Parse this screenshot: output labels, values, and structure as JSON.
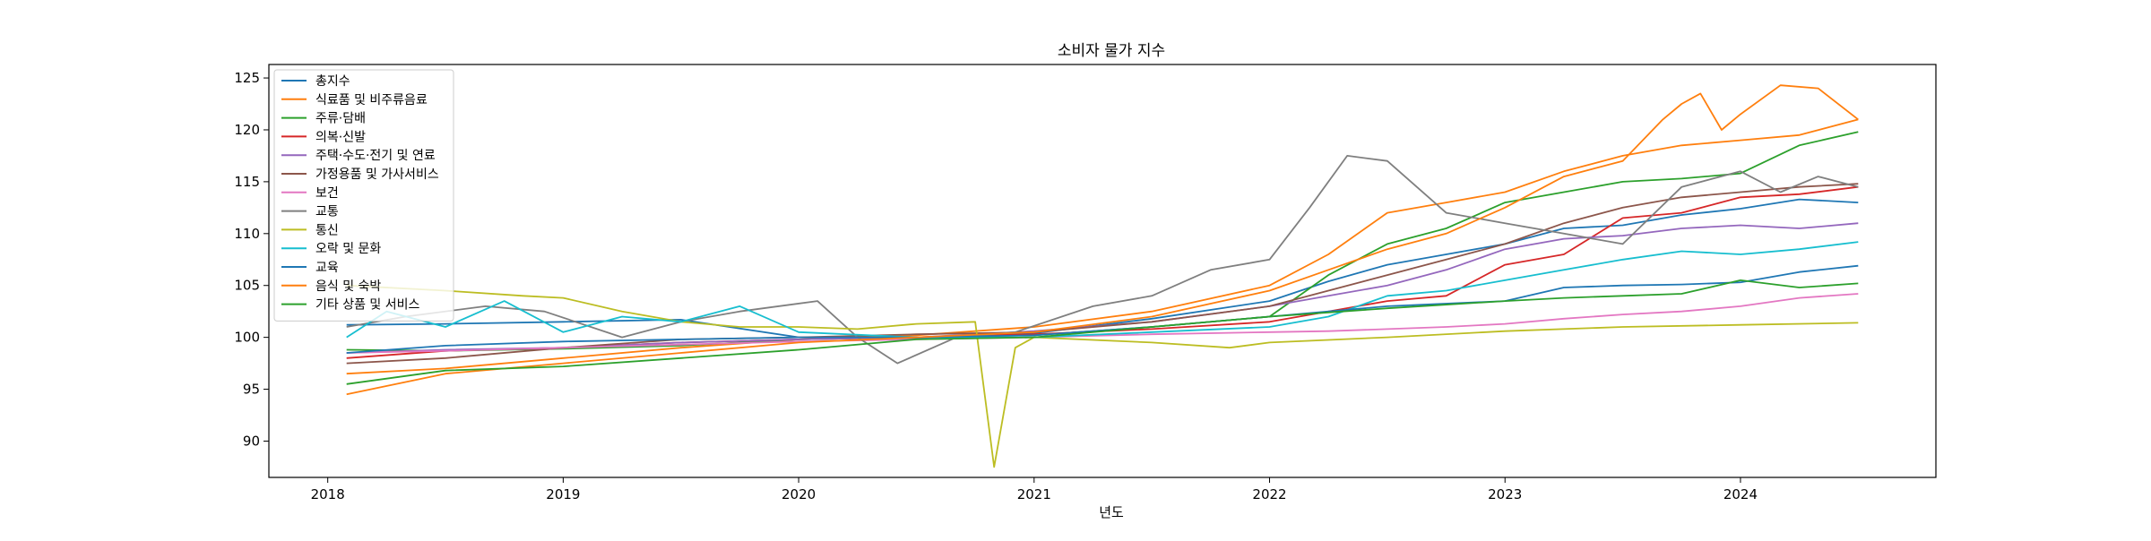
{
  "chart_data": {
    "type": "line",
    "title": "소비자 물가 지수",
    "xlabel": "년도",
    "ylabel": "",
    "xlim": [
      2017.75,
      2024.83
    ],
    "ylim": [
      86.5,
      126.3
    ],
    "xticks": [
      2018,
      2019,
      2020,
      2021,
      2022,
      2023,
      2024
    ],
    "yticks": [
      90,
      95,
      100,
      105,
      110,
      115,
      120,
      125
    ],
    "grid": false,
    "legend_position": "top-left",
    "series": [
      {
        "name": "총지수",
        "color": "#1f77b4",
        "x": [
          2018.08,
          2018.5,
          2019.0,
          2019.5,
          2020.0,
          2020.5,
          2021.0,
          2021.5,
          2022.0,
          2022.25,
          2022.5,
          2022.75,
          2023.0,
          2023.25,
          2023.5,
          2023.75,
          2024.0,
          2024.25,
          2024.5
        ],
        "y": [
          101.2,
          101.3,
          101.5,
          101.7,
          100.0,
          99.9,
          100.4,
          101.8,
          103.5,
          105.4,
          107.0,
          108.0,
          109.0,
          110.5,
          110.8,
          111.8,
          112.4,
          113.3,
          113.0
        ]
      },
      {
        "name": "식료품 및 비주류음료",
        "color": "#ff7f0e",
        "x": [
          2018.08,
          2018.5,
          2019.0,
          2019.5,
          2020.0,
          2020.5,
          2021.0,
          2021.5,
          2022.0,
          2022.25,
          2022.5,
          2022.75,
          2023.0,
          2023.25,
          2023.5,
          2023.75,
          2024.0,
          2024.25,
          2024.5
        ],
        "y": [
          96.5,
          97.0,
          98.0,
          99.0,
          99.8,
          100.2,
          101.0,
          102.5,
          105.0,
          108.0,
          112.0,
          113.0,
          114.0,
          116.0,
          117.5,
          118.5,
          119.0,
          119.5,
          121.0
        ]
      },
      {
        "name": "주류·담배",
        "color": "#2ca02c",
        "x": [
          2018.08,
          2018.5,
          2019.0,
          2019.5,
          2020.0,
          2020.5,
          2021.0,
          2021.5,
          2022.0,
          2022.25,
          2022.5,
          2022.75,
          2023.0,
          2023.25,
          2023.5,
          2023.75,
          2024.0,
          2024.25,
          2024.5
        ],
        "y": [
          98.8,
          98.7,
          98.9,
          99.2,
          99.8,
          100.0,
          100.2,
          101.0,
          102.0,
          106.0,
          109.0,
          110.5,
          113.0,
          114.0,
          115.0,
          115.3,
          115.8,
          118.5,
          119.8
        ]
      },
      {
        "name": "의복·신발",
        "color": "#d62728",
        "x": [
          2018.08,
          2018.5,
          2019.0,
          2019.5,
          2020.0,
          2020.5,
          2021.0,
          2021.5,
          2022.0,
          2022.25,
          2022.5,
          2022.75,
          2023.0,
          2023.25,
          2023.5,
          2023.75,
          2024.0,
          2024.25,
          2024.5
        ],
        "y": [
          98.0,
          98.7,
          99.0,
          99.5,
          99.8,
          100.0,
          100.3,
          100.8,
          101.5,
          102.5,
          103.5,
          104.0,
          107.0,
          108.0,
          111.5,
          112.0,
          113.5,
          113.8,
          114.5
        ]
      },
      {
        "name": "주택·수도·전기 및 연료",
        "color": "#9467bd",
        "x": [
          2018.08,
          2018.5,
          2019.0,
          2019.5,
          2020.0,
          2020.5,
          2021.0,
          2021.5,
          2022.0,
          2022.25,
          2022.5,
          2022.75,
          2023.0,
          2023.25,
          2023.5,
          2023.75,
          2024.0,
          2024.25,
          2024.5
        ],
        "y": [
          98.5,
          98.8,
          99.0,
          99.5,
          99.8,
          100.0,
          100.6,
          101.5,
          103.0,
          104.0,
          105.0,
          106.5,
          108.5,
          109.5,
          109.8,
          110.5,
          110.8,
          110.5,
          111.0
        ]
      },
      {
        "name": "가정용품 및 가사서비스",
        "color": "#8c564b",
        "x": [
          2018.08,
          2018.5,
          2019.0,
          2019.5,
          2020.0,
          2020.5,
          2021.0,
          2021.5,
          2022.0,
          2022.25,
          2022.5,
          2022.75,
          2023.0,
          2023.25,
          2023.5,
          2023.75,
          2024.0,
          2024.25,
          2024.5
        ],
        "y": [
          97.5,
          98.0,
          99.0,
          99.8,
          100.0,
          100.3,
          100.5,
          101.5,
          103.0,
          104.5,
          106.0,
          107.5,
          109.0,
          111.0,
          112.5,
          113.5,
          114.0,
          114.5,
          114.8
        ]
      },
      {
        "name": "보건",
        "color": "#e377c2",
        "x": [
          2018.08,
          2018.5,
          2019.0,
          2019.5,
          2020.0,
          2020.5,
          2021.0,
          2021.5,
          2022.0,
          2022.25,
          2022.5,
          2022.75,
          2023.0,
          2023.25,
          2023.5,
          2023.75,
          2024.0,
          2024.25,
          2024.5
        ],
        "y": [
          98.5,
          98.7,
          99.0,
          99.3,
          99.6,
          99.8,
          100.0,
          100.3,
          100.5,
          100.6,
          100.8,
          101.0,
          101.3,
          101.8,
          102.2,
          102.5,
          103.0,
          103.8,
          104.2
        ]
      },
      {
        "name": "교통",
        "color": "#7f7f7f",
        "x": [
          2018.08,
          2018.33,
          2018.67,
          2018.92,
          2019.25,
          2019.5,
          2019.75,
          2020.08,
          2020.25,
          2020.42,
          2020.67,
          2020.92,
          2021.25,
          2021.5,
          2021.75,
          2022.0,
          2022.17,
          2022.33,
          2022.5,
          2022.75,
          2023.0,
          2023.25,
          2023.5,
          2023.75,
          2024.0,
          2024.17,
          2024.33,
          2024.5
        ],
        "y": [
          101.0,
          102.0,
          103.0,
          102.5,
          100.0,
          101.5,
          102.5,
          103.5,
          100.0,
          97.5,
          100.0,
          100.5,
          103.0,
          104.0,
          106.5,
          107.5,
          112.5,
          117.5,
          117.0,
          112.0,
          111.0,
          110.0,
          109.0,
          114.5,
          116.0,
          114.0,
          115.5,
          114.5
        ]
      },
      {
        "name": "통신",
        "color": "#bcbd22",
        "x": [
          2018.08,
          2018.5,
          2018.83,
          2019.0,
          2019.25,
          2019.5,
          2019.75,
          2020.0,
          2020.25,
          2020.5,
          2020.75,
          2020.83,
          2020.92,
          2021.0,
          2021.5,
          2021.83,
          2022.0,
          2022.5,
          2023.0,
          2023.5,
          2024.0,
          2024.5
        ],
        "y": [
          105.0,
          104.5,
          104.0,
          103.8,
          102.5,
          101.5,
          101.0,
          101.0,
          100.8,
          101.3,
          101.5,
          87.5,
          99.0,
          100.0,
          99.5,
          99.0,
          99.5,
          100.0,
          100.6,
          101.0,
          101.2,
          101.4
        ]
      },
      {
        "name": "오락 및 문화",
        "color": "#17becf",
        "x": [
          2018.08,
          2018.25,
          2018.5,
          2018.75,
          2019.0,
          2019.25,
          2019.5,
          2019.75,
          2020.0,
          2020.5,
          2021.0,
          2021.5,
          2022.0,
          2022.25,
          2022.5,
          2022.75,
          2023.0,
          2023.25,
          2023.5,
          2023.75,
          2024.0,
          2024.25,
          2024.5
        ],
        "y": [
          100.0,
          102.5,
          101.0,
          103.5,
          100.5,
          102.0,
          101.5,
          103.0,
          100.5,
          100.0,
          100.0,
          100.5,
          101.0,
          102.0,
          104.0,
          104.5,
          105.5,
          106.5,
          107.5,
          108.3,
          108.0,
          108.5,
          109.2
        ]
      },
      {
        "name": "교육",
        "color": "#1f77b4",
        "x": [
          2018.08,
          2018.5,
          2019.0,
          2019.5,
          2020.0,
          2020.5,
          2021.0,
          2021.5,
          2022.0,
          2022.5,
          2023.0,
          2023.25,
          2023.5,
          2023.75,
          2024.0,
          2024.25,
          2024.5
        ],
        "y": [
          98.5,
          99.2,
          99.6,
          99.8,
          100.0,
          100.0,
          100.2,
          101.0,
          102.0,
          103.0,
          103.5,
          104.8,
          105.0,
          105.1,
          105.3,
          106.3,
          106.9
        ]
      },
      {
        "name": "음식 및 숙박",
        "color": "#ff7f0e",
        "x": [
          2018.08,
          2018.5,
          2019.0,
          2019.5,
          2020.0,
          2020.5,
          2021.0,
          2021.5,
          2022.0,
          2022.25,
          2022.5,
          2022.75,
          2023.0,
          2023.25,
          2023.5,
          2023.67,
          2023.75,
          2023.83,
          2023.92,
          2024.0,
          2024.17,
          2024.33,
          2024.5
        ],
        "y": [
          94.5,
          96.5,
          97.5,
          98.5,
          99.5,
          100.0,
          100.5,
          102.0,
          104.5,
          106.5,
          108.5,
          110.0,
          112.5,
          115.5,
          117.0,
          121.0,
          122.5,
          123.5,
          120.0,
          121.5,
          124.3,
          124.0,
          121.0
        ]
      },
      {
        "name": "기타 상품 및 서비스",
        "color": "#2ca02c",
        "x": [
          2018.08,
          2018.5,
          2019.0,
          2019.5,
          2020.0,
          2020.5,
          2021.0,
          2021.5,
          2022.0,
          2022.5,
          2023.0,
          2023.25,
          2023.5,
          2023.75,
          2024.0,
          2024.25,
          2024.5
        ],
        "y": [
          95.5,
          96.8,
          97.2,
          98.0,
          98.8,
          99.8,
          100.0,
          101.0,
          102.0,
          102.8,
          103.5,
          103.8,
          104.0,
          104.2,
          105.5,
          104.8,
          105.2
        ]
      }
    ]
  }
}
